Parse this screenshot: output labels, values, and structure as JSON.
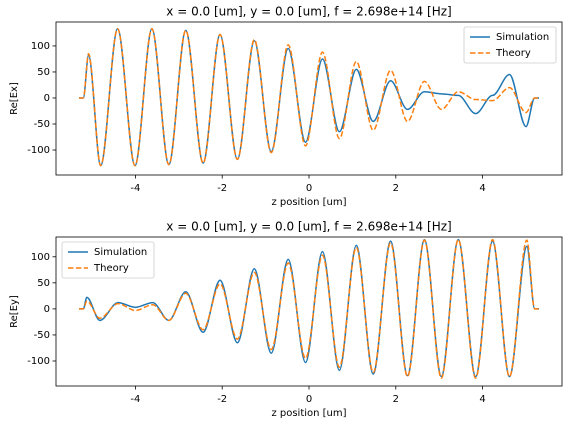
{
  "chart_data": [
    {
      "type": "line",
      "title": "x = 0.0 [um], y = 0.0 [um], f = 2.698e+14 [Hz]",
      "x_label": "z position [um]",
      "y_label": "Re[Ex]",
      "x": [
        -5.3,
        -5.2,
        -5.08,
        -4.8,
        -4.41,
        -4.01,
        -3.62,
        -3.23,
        -2.84,
        -2.44,
        -2.05,
        -1.65,
        -1.26,
        -0.87,
        -0.48,
        -0.08,
        0.31,
        0.7,
        1.09,
        1.48,
        1.88,
        2.27,
        2.66,
        3.05,
        3.44,
        3.84,
        4.23,
        4.62,
        5.0,
        5.2,
        5.3
      ],
      "series": [
        {
          "name": "Simulation",
          "color": "#1f77b4",
          "dash": false,
          "values": [
            0,
            0,
            82,
            -130,
            133,
            -130,
            133,
            -128,
            130,
            -125,
            122,
            -118,
            110,
            -103,
            95,
            -85,
            75,
            -65,
            55,
            -45,
            33,
            -22,
            12,
            8,
            5,
            -30,
            5,
            45,
            -55,
            0,
            0
          ]
        },
        {
          "name": "Theory",
          "color": "#ff7f0e",
          "dash": true,
          "values": [
            0,
            0,
            85,
            -130,
            133,
            -130,
            133,
            -128,
            130,
            -125,
            122,
            -118,
            112,
            -105,
            102,
            -92,
            88,
            -78,
            70,
            -62,
            53,
            -45,
            32,
            -22,
            12,
            -3,
            -5,
            20,
            -28,
            0,
            0
          ]
        }
      ],
      "xlim": [
        -5.83,
        5.83
      ],
      "xticks": [
        -4,
        -2,
        0,
        2,
        4
      ],
      "ylim": [
        -148,
        146
      ],
      "yticks": [
        -100,
        -50,
        0,
        50,
        100
      ],
      "legend": "upper right"
    },
    {
      "type": "line",
      "title": "x = 0.0 [um], y = 0.0 [um], f = 2.698e+14 [Hz]",
      "x_label": "z position [um]",
      "y_label": "Re[Ey]",
      "x": [
        -5.3,
        -5.2,
        -5.12,
        -4.82,
        -4.4,
        -4.0,
        -3.6,
        -3.23,
        -2.84,
        -2.44,
        -2.05,
        -1.65,
        -1.26,
        -0.87,
        -0.48,
        -0.08,
        0.31,
        0.7,
        1.09,
        1.48,
        1.88,
        2.27,
        2.66,
        3.05,
        3.44,
        3.84,
        4.23,
        4.62,
        5.02,
        5.2,
        5.3
      ],
      "series": [
        {
          "name": "Simulation",
          "color": "#1f77b4",
          "dash": false,
          "values": [
            0,
            0,
            22,
            -22,
            12,
            3,
            12,
            -22,
            33,
            -45,
            55,
            -65,
            77,
            -85,
            95,
            -103,
            110,
            -118,
            122,
            -125,
            130,
            -128,
            133,
            -130,
            133,
            -130,
            130,
            -130,
            120,
            0,
            0
          ]
        },
        {
          "name": "Theory",
          "color": "#ff7f0e",
          "dash": true,
          "values": [
            0,
            0,
            15,
            -18,
            10,
            -3,
            8,
            -22,
            30,
            -40,
            48,
            -58,
            70,
            -78,
            88,
            -95,
            103,
            -112,
            118,
            -122,
            127,
            -130,
            132,
            -133,
            133,
            -133,
            133,
            -130,
            132,
            0,
            0
          ]
        }
      ],
      "xlim": [
        -5.83,
        5.83
      ],
      "xticks": [
        -4,
        -2,
        0,
        2,
        4
      ],
      "ylim": [
        -148,
        138
      ],
      "yticks": [
        -100,
        -50,
        0,
        50,
        100
      ],
      "legend": "upper left"
    }
  ]
}
